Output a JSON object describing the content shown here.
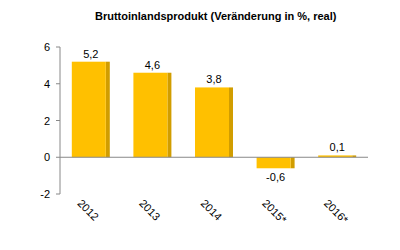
{
  "chart_data": {
    "type": "bar",
    "title": "Bruttoinlandsprodukt (Veränderung in %, real)",
    "categories": [
      "2012",
      "2013",
      "2014",
      "2015*",
      "2016*"
    ],
    "values": [
      5.2,
      4.6,
      3.8,
      -0.6,
      0.1
    ],
    "value_labels": [
      "5,2",
      "4,6",
      "3,8",
      "-0,6",
      "0,1"
    ],
    "color": "#FFC000",
    "ylim": [
      -2,
      6
    ],
    "yticks": [
      -2,
      0,
      2,
      4,
      6
    ],
    "grid": false,
    "data_labels": true
  }
}
